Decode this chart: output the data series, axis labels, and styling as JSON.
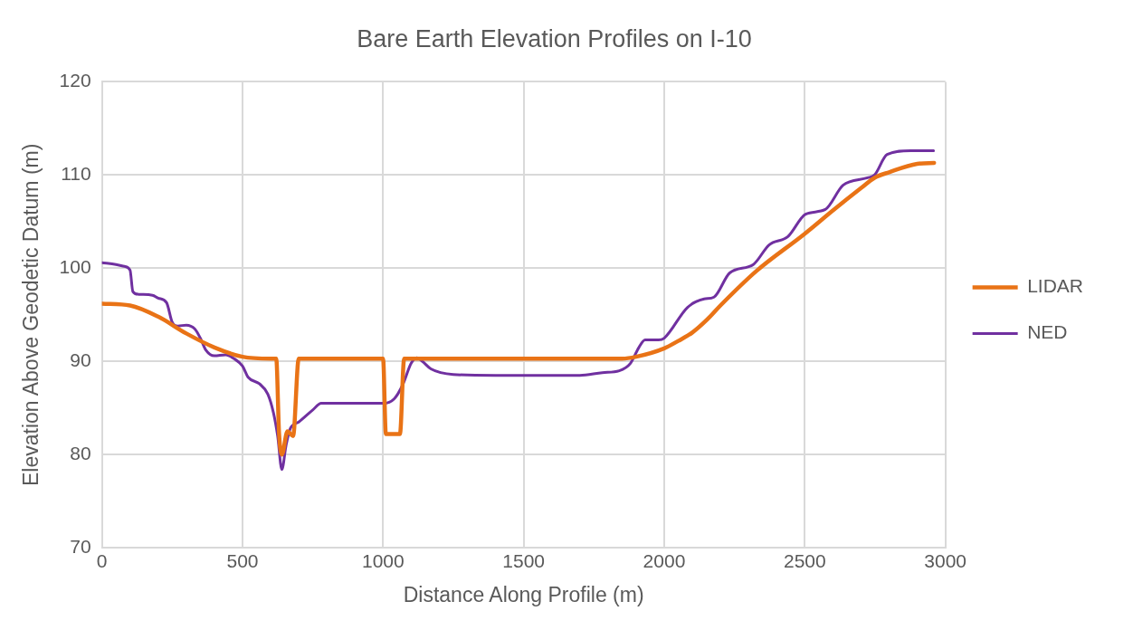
{
  "chart_data": {
    "type": "line",
    "title": "Bare Earth Elevation Profiles on I-10",
    "xlabel": "Distance Along Profile (m)",
    "ylabel": "Elevation Above Geodetic Datum (m)",
    "xlim": [
      0,
      3000
    ],
    "xticks": [
      0,
      500,
      1000,
      1500,
      2000,
      2500,
      3000
    ],
    "ylim": [
      70,
      120
    ],
    "yticks": [
      70,
      80,
      90,
      100,
      110,
      120
    ],
    "grid": true,
    "legend": "right",
    "marker": "none",
    "line_style": "solid",
    "series": [
      {
        "name": "LIDAR",
        "color": "#e97316",
        "x": [
          0,
          100,
          200,
          300,
          400,
          500,
          600,
          620,
          630,
          640,
          660,
          680,
          700,
          800,
          1000,
          1010,
          1060,
          1075,
          1200,
          1500,
          1850,
          1900,
          2000,
          2050,
          2100,
          2153,
          2200,
          2328,
          2500,
          2600,
          2700,
          2748,
          2800,
          2900,
          2960
        ],
        "values": [
          96.2,
          96,
          94.8,
          93,
          91.5,
          90.5,
          90.3,
          90.3,
          82.3,
          80,
          82.5,
          82,
          90.3,
          90.3,
          90.3,
          82.2,
          82.2,
          90.3,
          90.3,
          90.3,
          90.3,
          90.5,
          91.4,
          92.2,
          93.1,
          94.5,
          96,
          99.7,
          103.7,
          106.2,
          108.6,
          109.7,
          110.3,
          111.2,
          111.3
        ]
      },
      {
        "name": "NED",
        "color": "#7030a0",
        "x": [
          0,
          50,
          80,
          100,
          110,
          130,
          180,
          200,
          230,
          250,
          270,
          300,
          330,
          350,
          370,
          400,
          440,
          470,
          500,
          520,
          560,
          590,
          610,
          625,
          640,
          655,
          670,
          700,
          750,
          780,
          1000,
          1040,
          1070,
          1100,
          1120,
          1140,
          1170,
          1250,
          1400,
          1700,
          1780,
          1840,
          1880,
          1910,
          1932,
          1980,
          2000,
          2083,
          2142,
          2177,
          2233,
          2317,
          2373,
          2440,
          2503,
          2573,
          2636,
          2723,
          2748,
          2793,
          2877,
          2958
        ],
        "values": [
          100.6,
          100.4,
          100.2,
          99.8,
          97.5,
          97.2,
          97.1,
          96.8,
          96.3,
          94.2,
          93.8,
          93.9,
          93.5,
          92.5,
          91.2,
          90.6,
          90.7,
          90.3,
          89.5,
          88.3,
          87.6,
          86.5,
          84.5,
          82,
          78.4,
          81,
          82.8,
          83.5,
          84.8,
          85.5,
          85.5,
          86,
          87.5,
          89.8,
          90.4,
          90,
          89.2,
          88.6,
          88.5,
          88.5,
          88.8,
          89,
          89.8,
          91.5,
          92.3,
          92.3,
          92.5,
          95.8,
          96.7,
          96.9,
          99.5,
          100.4,
          102.5,
          103.4,
          105.8,
          106.3,
          108.9,
          109.7,
          110,
          112.2,
          112.6,
          112.6
        ]
      }
    ]
  }
}
